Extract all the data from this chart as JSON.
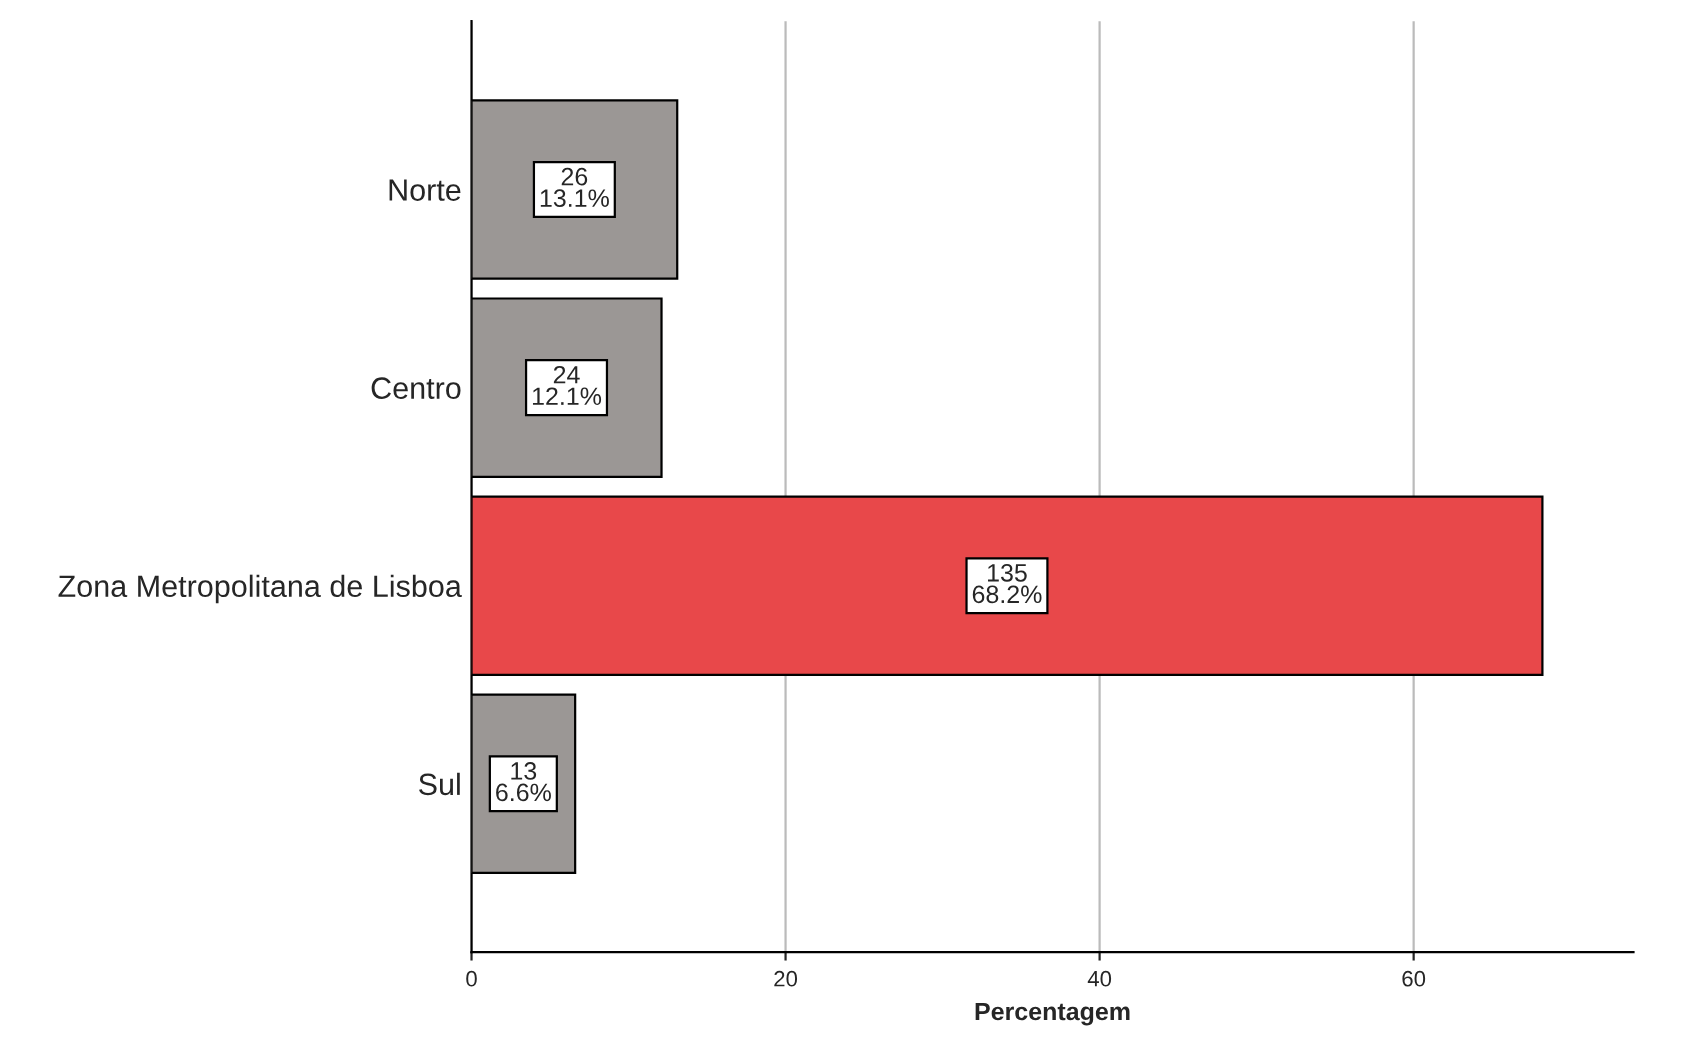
{
  "chart_data": {
    "type": "bar",
    "orientation": "horizontal",
    "xlabel": "Percentagem",
    "categories": [
      "Norte",
      "Centro",
      "Zona Metropolitana de Lisboa",
      "Sul"
    ],
    "values": [
      13.1,
      12.1,
      68.2,
      6.6
    ],
    "colors": [
      "#9b9795",
      "#9b9795",
      "#e8484a",
      "#9b9795"
    ],
    "value_labels": [
      "26\n13.1%",
      "24\n12.1%",
      "135\n68.2%",
      "13\n6.6%"
    ],
    "xlim": [
      0,
      74
    ],
    "xticks": [
      0,
      20,
      40,
      60
    ],
    "grid": "x"
  }
}
